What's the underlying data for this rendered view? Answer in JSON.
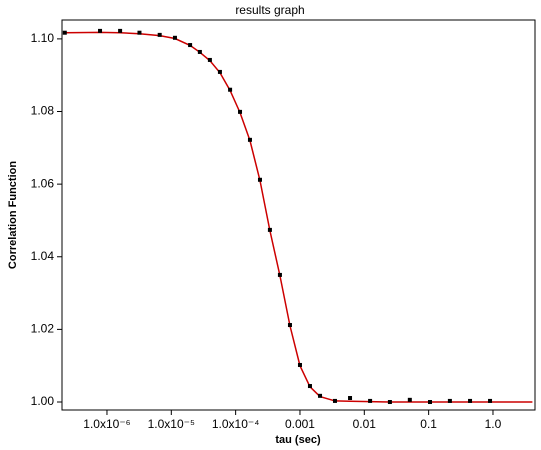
{
  "chart_data": {
    "type": "scatter",
    "title": "results graph",
    "xlabel": "tau (sec)",
    "ylabel": "Correlation Function",
    "xscale": "log",
    "xlim": [
      2e-07,
      4.5
    ],
    "ylim": [
      0.9978,
      1.1052
    ],
    "xticks": [
      {
        "value": 1e-06,
        "label": "1.0x10⁻⁶"
      },
      {
        "value": 1e-05,
        "label": "1.0x10⁻⁵"
      },
      {
        "value": 0.0001,
        "label": "1.0x10⁻⁴"
      },
      0.001,
      0.01,
      0.1,
      {
        "value": 1,
        "label": "1.0"
      }
    ],
    "yticks": [
      {
        "value": 1.0,
        "label": "1.00"
      },
      {
        "value": 1.02,
        "label": "1.02"
      },
      {
        "value": 1.04,
        "label": "1.04"
      },
      {
        "value": 1.06,
        "label": "1.06"
      },
      {
        "value": 1.08,
        "label": "1.08"
      },
      {
        "value": 1.1,
        "label": "1.10"
      }
    ],
    "series": [
      {
        "mode": "line",
        "color": "#cc0000",
        "x": [
          2.21e-07,
          7.8e-07,
          1.6e-06,
          3.2e-06,
          6.6e-06,
          1.14e-05,
          1.96e-05,
          2.78e-05,
          3.98e-05,
          5.7e-05,
          8.2e-05,
          0.000117,
          0.000167,
          0.000239,
          0.000341,
          0.000488,
          0.000699,
          0.001,
          0.00143,
          0.00205,
          0.0035,
          0.006,
          0.0123,
          0.025,
          0.051,
          0.105,
          0.214,
          0.44,
          0.9,
          4.1
        ],
        "values": [
          1.1017,
          1.1018,
          1.1017,
          1.1014,
          1.1009,
          1.1001,
          1.0982,
          1.0963,
          1.094,
          1.0907,
          1.0858,
          1.0797,
          1.072,
          1.061,
          1.0472,
          1.0348,
          1.021,
          1.01,
          1.0042,
          1.0015,
          1.0003,
          1.0002,
          1.0001,
          1.0,
          1.0,
          1.0,
          1.0,
          1.0,
          1.0,
          1.0
        ]
      },
      {
        "mode": "markers",
        "color": "#000000",
        "x": [
          2.21e-07,
          7.8e-07,
          1.6e-06,
          3.2e-06,
          6.6e-06,
          1.14e-05,
          1.96e-05,
          2.78e-05,
          3.98e-05,
          5.7e-05,
          8.2e-05,
          0.000117,
          0.000167,
          0.000239,
          0.000341,
          0.000488,
          0.000699,
          0.001,
          0.00143,
          0.00205,
          0.0035,
          0.006,
          0.0123,
          0.025,
          0.051,
          0.105,
          0.214,
          0.44,
          0.9
        ],
        "values": [
          1.1017,
          1.1022,
          1.1022,
          1.1017,
          1.1011,
          1.1003,
          1.0983,
          1.0964,
          1.0942,
          1.0909,
          1.086,
          1.0799,
          1.0722,
          1.0612,
          1.0474,
          1.035,
          1.0212,
          1.0102,
          1.0044,
          1.0017,
          1.0003,
          1.0011,
          1.0003,
          1.0,
          1.0006,
          1.0,
          1.0003,
          1.0003,
          1.0003
        ]
      }
    ]
  }
}
